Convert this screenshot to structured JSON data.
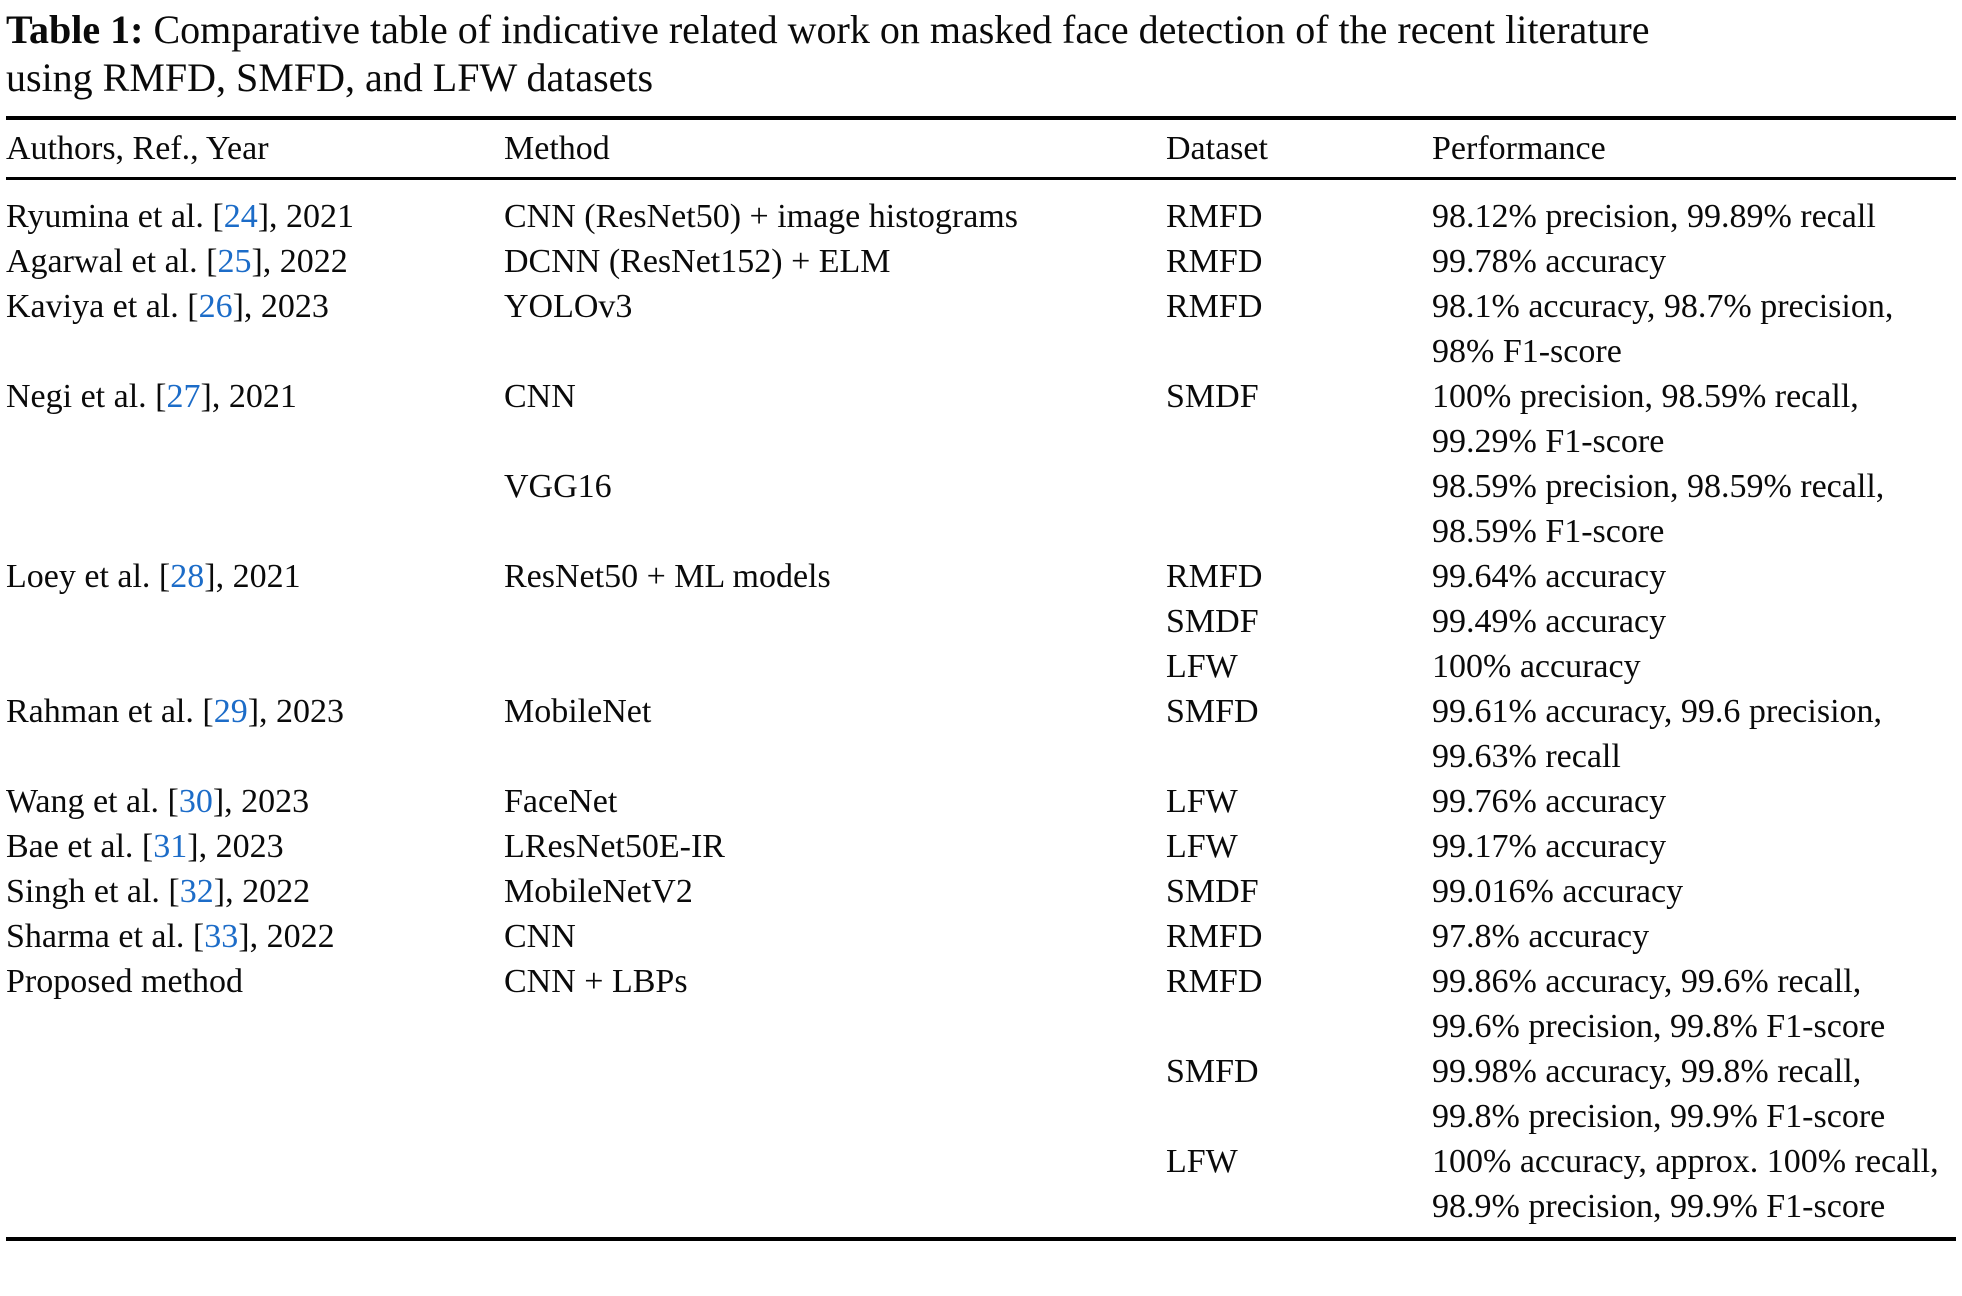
{
  "caption": {
    "label": "Table 1:",
    "line1": "Comparative table of indicative related work on masked face detection of the recent literature",
    "line2": "using RMFD, SMFD, and LFW datasets"
  },
  "columns": [
    "Authors, Ref., Year",
    "Method",
    "Dataset",
    "Performance"
  ],
  "link_color": "#1c6cc8",
  "text_color": "#0a0a0a",
  "rows": [
    {
      "author_pre": "Ryumina et al. [",
      "author_ref": "24",
      "author_post": "], 2021",
      "entries": [
        {
          "method": "CNN (ResNet50) + image histograms",
          "dataset": "RMFD",
          "performance": "98.12% precision, 99.89% recall"
        }
      ]
    },
    {
      "author_pre": "Agarwal et al. [",
      "author_ref": "25",
      "author_post": "], 2022",
      "entries": [
        {
          "method": "DCNN (ResNet152) + ELM",
          "dataset": "RMFD",
          "performance": "99.78% accuracy"
        }
      ]
    },
    {
      "author_pre": "Kaviya et al. [",
      "author_ref": "26",
      "author_post": "], 2023",
      "entries": [
        {
          "method": "YOLOv3",
          "dataset": "RMFD",
          "performance": "98.1% accuracy, 98.7% precision, 98% F1-score"
        }
      ]
    },
    {
      "author_pre": "Negi et al. [",
      "author_ref": "27",
      "author_post": "], 2021",
      "entries": [
        {
          "method": "CNN",
          "dataset": "SMDF",
          "performance": "100% precision, 98.59% recall, 99.29% F1-score"
        },
        {
          "method": "VGG16",
          "dataset": "",
          "performance": "98.59% precision, 98.59% recall, 98.59% F1-score"
        }
      ]
    },
    {
      "author_pre": "Loey et al. [",
      "author_ref": "28",
      "author_post": "], 2021",
      "entries": [
        {
          "method": "ResNet50 + ML models",
          "dataset": "RMFD",
          "performance": "99.64% accuracy"
        },
        {
          "method": "",
          "dataset": "SMDF",
          "performance": "99.49% accuracy"
        },
        {
          "method": "",
          "dataset": "LFW",
          "performance": "100% accuracy"
        }
      ]
    },
    {
      "author_pre": "Rahman et al. [",
      "author_ref": "29",
      "author_post": "], 2023",
      "entries": [
        {
          "method": "MobileNet",
          "dataset": "SMFD",
          "performance": "99.61% accuracy, 99.6 precision, 99.63% recall"
        }
      ]
    },
    {
      "author_pre": "Wang et al. [",
      "author_ref": "30",
      "author_post": "], 2023",
      "entries": [
        {
          "method": "FaceNet",
          "dataset": "LFW",
          "performance": "99.76% accuracy"
        }
      ]
    },
    {
      "author_pre": "Bae et al. [",
      "author_ref": "31",
      "author_post": "], 2023",
      "entries": [
        {
          "method": "LResNet50E-IR",
          "dataset": "LFW",
          "performance": "99.17% accuracy"
        }
      ]
    },
    {
      "author_pre": "Singh et al. [",
      "author_ref": "32",
      "author_post": "], 2022",
      "entries": [
        {
          "method": "MobileNetV2",
          "dataset": "SMDF",
          "performance": "99.016% accuracy"
        }
      ]
    },
    {
      "author_pre": "Sharma et al. [",
      "author_ref": "33",
      "author_post": "], 2022",
      "entries": [
        {
          "method": "CNN",
          "dataset": "RMFD",
          "performance": "97.8% accuracy"
        }
      ]
    },
    {
      "author_pre": "Proposed method",
      "author_ref": "",
      "author_post": "",
      "entries": [
        {
          "method": "CNN + LBPs",
          "dataset": "RMFD",
          "performance": "99.86% accuracy, 99.6% recall, 99.6% precision, 99.8% F1-score"
        },
        {
          "method": "",
          "dataset": "SMFD",
          "performance": "99.98% accuracy, 99.8% recall, 99.8% precision, 99.9% F1-score"
        },
        {
          "method": "",
          "dataset": "LFW",
          "performance": "100% accuracy, approx. 100% recall, 98.9% precision, 99.9% F1-score"
        }
      ]
    }
  ]
}
